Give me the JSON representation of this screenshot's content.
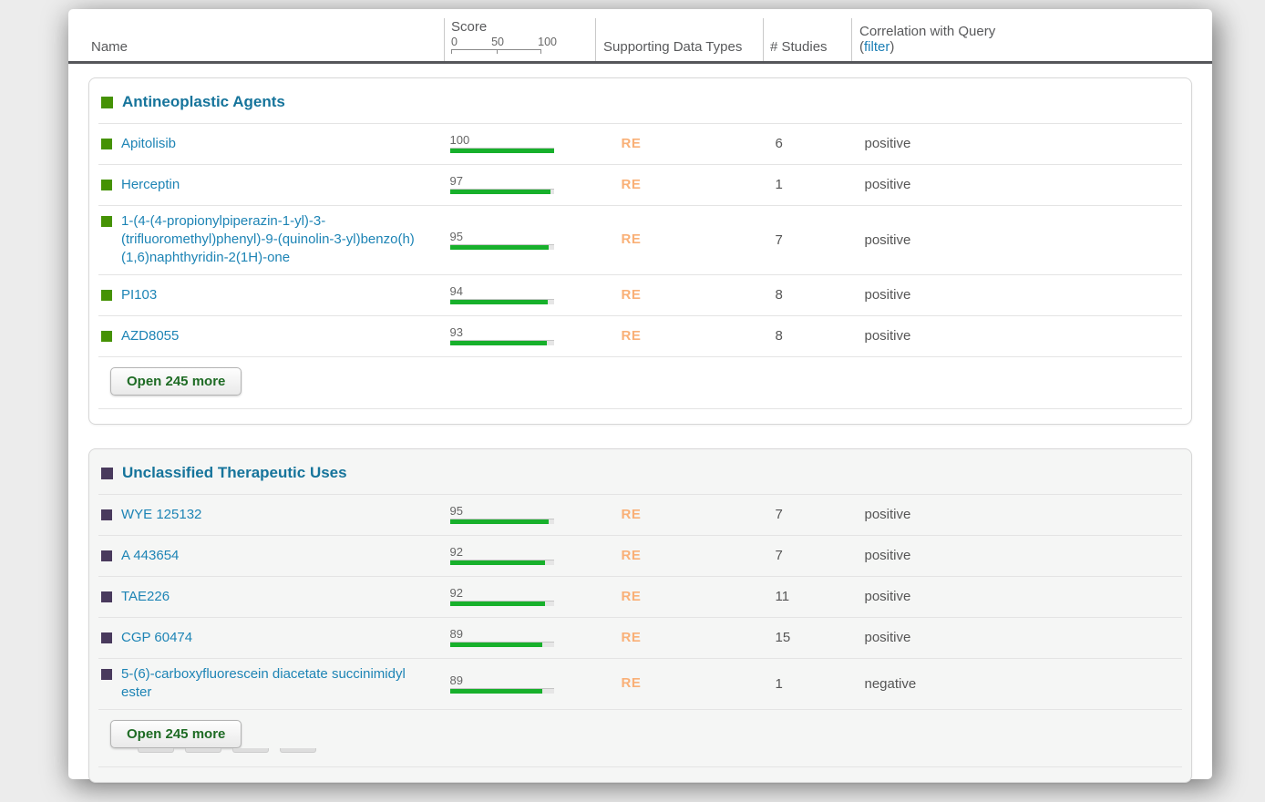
{
  "header": {
    "name": "Name",
    "score_label": "Score",
    "score_ticks": {
      "t0": "0",
      "t50": "50",
      "t100": "100"
    },
    "supporting": "Supporting Data Types",
    "studies": "# Studies",
    "correlation": "Correlation with Query",
    "filter_open": "(",
    "filter_label": "filter",
    "filter_close": ")"
  },
  "colors": {
    "bar_green": "#17b02b",
    "group1_marker": "#459204",
    "group2_marker": "#493a5d",
    "group_title": "#16749b",
    "row_link": "#1d84b5",
    "re_badge": "#f9b077",
    "button_text": "#1e6b24",
    "filter_link": "#1b7eb5"
  },
  "groups": [
    {
      "title": "Antineoplastic Agents",
      "marker_color": "#459204",
      "bg": "#ffffff",
      "open_more_label": "Open 245 more",
      "stacked_preview": false,
      "rows": [
        {
          "name": "Apitolisib",
          "score": 100,
          "types": [
            "RE"
          ],
          "studies": "6",
          "correlation": "positive"
        },
        {
          "name": "Herceptin",
          "score": 97,
          "types": [
            "RE"
          ],
          "studies": "1",
          "correlation": "positive"
        },
        {
          "name": "1-(4-(4-propionylpiperazin-1-yl)-3-(trifluoromethyl)phenyl)-9-(quinolin-3-yl)benzo(h)(1,6)naphthyridin-2(1H)-one",
          "score": 95,
          "types": [
            "RE"
          ],
          "studies": "7",
          "correlation": "positive"
        },
        {
          "name": "PI103",
          "score": 94,
          "types": [
            "RE"
          ],
          "studies": "8",
          "correlation": "positive"
        },
        {
          "name": "AZD8055",
          "score": 93,
          "types": [
            "RE"
          ],
          "studies": "8",
          "correlation": "positive"
        }
      ]
    },
    {
      "title": "Unclassified Therapeutic Uses",
      "marker_color": "#493a5d",
      "bg": "#f5f6f5",
      "open_more_label": "Open 245 more",
      "stacked_preview": true,
      "rows": [
        {
          "name": "WYE 125132",
          "score": 95,
          "types": [
            "RE"
          ],
          "studies": "7",
          "correlation": "positive"
        },
        {
          "name": "A 443654",
          "score": 92,
          "types": [
            "RE"
          ],
          "studies": "7",
          "correlation": "positive"
        },
        {
          "name": "TAE226",
          "score": 92,
          "types": [
            "RE"
          ],
          "studies": "11",
          "correlation": "positive"
        },
        {
          "name": "CGP 60474",
          "score": 89,
          "types": [
            "RE"
          ],
          "studies": "15",
          "correlation": "positive"
        },
        {
          "name": "5-(6)-carboxyfluorescein diacetate succinimidyl ester",
          "score": 89,
          "types": [
            "RE"
          ],
          "studies": "1",
          "correlation": "negative"
        }
      ]
    }
  ]
}
